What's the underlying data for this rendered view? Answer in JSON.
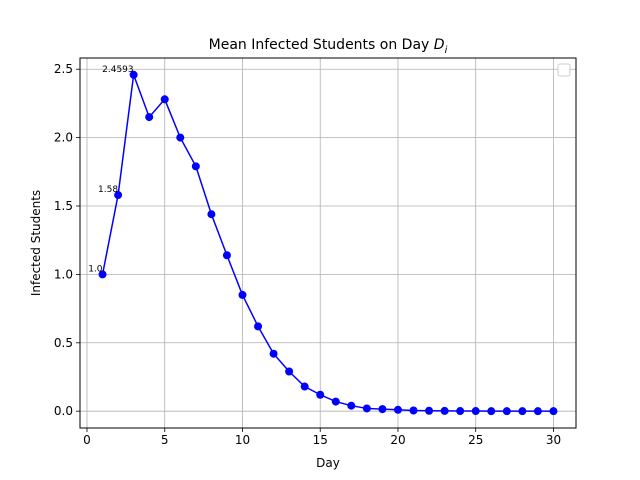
{
  "chart_data": {
    "type": "line",
    "title": "Mean Infected Students on Day D",
    "title_main": "Mean Infected Students on Day ",
    "title_var": "D",
    "title_sub": "i",
    "xlabel": "Day",
    "ylabel": "Infected Students",
    "xlim": [
      -0.45,
      31.45
    ],
    "ylim": [
      -0.123,
      2.582
    ],
    "xticks": [
      0,
      5,
      10,
      15,
      20,
      25,
      30
    ],
    "xtick_labels": [
      "0",
      "5",
      "10",
      "15",
      "20",
      "25",
      "30"
    ],
    "yticks": [
      0.0,
      0.5,
      1.0,
      1.5,
      2.0,
      2.5
    ],
    "ytick_labels": [
      "0.0",
      "0.5",
      "1.0",
      "1.5",
      "2.0",
      "2.5"
    ],
    "grid": true,
    "legend": "upper right (empty)",
    "series": [
      {
        "color": "#0000ff",
        "marker": "circle",
        "x": [
          1,
          2,
          3,
          4,
          5,
          6,
          7,
          8,
          9,
          10,
          11,
          12,
          13,
          14,
          15,
          16,
          17,
          18,
          19,
          20,
          21,
          22,
          23,
          24,
          25,
          26,
          27,
          28,
          29,
          30
        ],
        "y": [
          1.0,
          1.58,
          2.4593,
          2.15,
          2.28,
          2.0,
          1.79,
          1.44,
          1.14,
          0.85,
          0.62,
          0.42,
          0.29,
          0.18,
          0.12,
          0.07,
          0.04,
          0.02,
          0.015,
          0.01,
          0.005,
          0.003,
          0.002,
          0.001,
          0.001,
          0.0,
          0.0,
          0.0,
          0.0,
          0.0
        ]
      }
    ],
    "annotations": [
      {
        "x": 1,
        "y": 1.0,
        "text": "1.0"
      },
      {
        "x": 2,
        "y": 1.58,
        "text": "1.58"
      },
      {
        "x": 3,
        "y": 2.4593,
        "text": "2.4593"
      }
    ]
  }
}
